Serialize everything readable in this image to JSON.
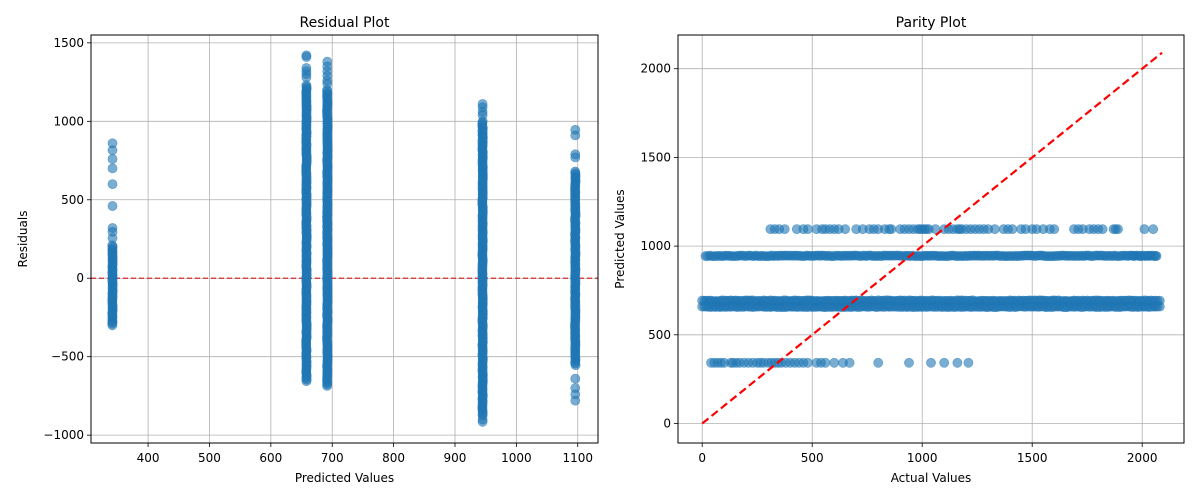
{
  "chart_data": [
    {
      "type": "scatter",
      "title": "Residual Plot",
      "xlabel": "Predicted Values",
      "ylabel": "Residuals",
      "xlim": [
        307,
        1133
      ],
      "ylim": [
        -1050,
        1550
      ],
      "xticks": [
        400,
        500,
        600,
        700,
        800,
        900,
        1000,
        1100
      ],
      "yticks": [
        -1000,
        -500,
        0,
        500,
        1000,
        1500
      ],
      "grid": true,
      "reference_line": {
        "y": 0,
        "color": "#d62728",
        "style": "dashed"
      },
      "marker_color": "#1f77b4",
      "clusters": [
        {
          "x": 342,
          "y_min": -310,
          "y_max": 210,
          "outliers": [
            860,
            815,
            760,
            700,
            600,
            460,
            320,
            295,
            255
          ]
        },
        {
          "x": 658,
          "y_min": -660,
          "y_max": 1230,
          "outliers": [
            1420,
            1410,
            1340,
            1320,
            1300,
            1280
          ]
        },
        {
          "x": 692,
          "y_min": -690,
          "y_max": 1200,
          "outliers": [
            1380,
            1350,
            1320,
            1290,
            1260,
            1240
          ]
        },
        {
          "x": 945,
          "y_min": -880,
          "y_max": 1000,
          "outliers": [
            1110,
            1090,
            1060,
            1040,
            -900,
            -915
          ]
        },
        {
          "x": 1096,
          "y_min": -560,
          "y_max": 680,
          "outliers": [
            945,
            910,
            790,
            770,
            -640,
            -700,
            -740,
            -780
          ]
        }
      ]
    },
    {
      "type": "scatter",
      "title": "Parity Plot",
      "xlabel": "Actual Values",
      "ylabel": "Predicted Values",
      "xlim": [
        -110,
        2190
      ],
      "ylim": [
        -110,
        2190
      ],
      "xticks": [
        0,
        500,
        1000,
        1500,
        2000
      ],
      "yticks": [
        0,
        500,
        1000,
        1500,
        2000
      ],
      "grid": true,
      "reference_line": {
        "from": [
          0,
          0
        ],
        "to": [
          2090,
          2090
        ],
        "color": "#ff0000",
        "style": "dashed"
      },
      "marker_color": "#1f77b4",
      "bands": [
        {
          "y": 1096,
          "x_points": [
            310,
            330,
            350,
            375,
            430,
            460,
            480,
            520,
            545,
            560,
            580,
            600,
            620,
            650,
            700,
            730,
            760,
            780,
            800,
            830,
            850,
            860,
            900,
            920,
            940,
            960,
            980,
            990,
            1000,
            1010,
            1020,
            1030,
            1060,
            1100,
            1120,
            1140,
            1160,
            1170,
            1180,
            1200,
            1220,
            1240,
            1260,
            1280,
            1300,
            1330,
            1370,
            1390,
            1410,
            1450,
            1470,
            1500,
            1520,
            1550,
            1580,
            1600,
            1690,
            1710,
            1730,
            1760,
            1780,
            1800,
            1820,
            1870,
            1880,
            1890,
            2010,
            2050
          ]
        },
        {
          "y": 945,
          "x_min": 15,
          "x_max": 2070,
          "x_sparse": [
            1960,
            1990,
            2030,
            2060
          ]
        },
        {
          "y": 692,
          "x_min": 0,
          "x_max": 2090
        },
        {
          "y": 658,
          "x_min": 0,
          "x_max": 2090
        },
        {
          "y": 342,
          "x_points": [
            40,
            55,
            70,
            85,
            100,
            130,
            140,
            155,
            170,
            190,
            210,
            230,
            250,
            265,
            280,
            300,
            315,
            330,
            345,
            360,
            380,
            400,
            420,
            440,
            460,
            480,
            520,
            540,
            560,
            600,
            640,
            670,
            800,
            940,
            1040,
            1100,
            1160,
            1210
          ]
        }
      ]
    }
  ]
}
